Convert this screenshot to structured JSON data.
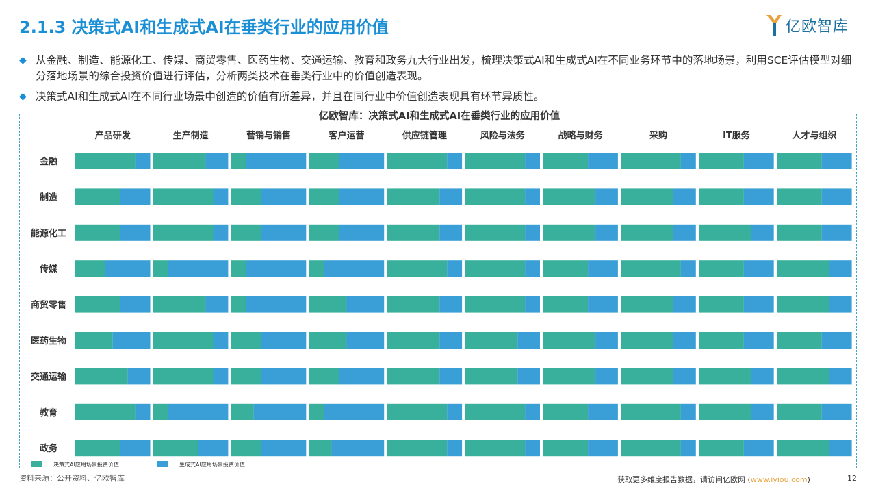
{
  "header": {
    "title": "2.1.3 决策式AI和生成式AI在垂类行业的应用价值",
    "logo_text": "亿欧智库"
  },
  "bullets": [
    "从金融、制造、能源化工、传媒、商贸零售、医药生物、交通运输、教育和政务九大行业出发，梳理决策式AI和生成式AI在不同业务环节中的落地场景，利用SCE评估模型对细分落地场景的综合投资价值进行评估，分析两类技术在垂类行业中的价值创造表现。",
    "决策式AI和生成式AI在不同行业场景中创造的价值有所差异，并且在同行业中价值创造表现具有环节异质性。"
  ],
  "footer": {
    "source": "资料来源：公开资料、亿欧智库",
    "more": "获取更多维度报告数据，请访问亿欧网 (",
    "link": "www.iyiou.com",
    "close": ")",
    "page": "12"
  },
  "colors": {
    "decision": "#38b09c",
    "generative": "#3a9fd6",
    "accent": "#1a8fd6"
  },
  "chart_data": {
    "type": "bar",
    "title": "亿欧智库：决策式AI和生成式AI在垂类行业的应用价值",
    "stacked": true,
    "normalized": true,
    "columns": [
      "产品研发",
      "生产制造",
      "营销与销售",
      "客户运营",
      "供应链管理",
      "风险与法务",
      "战略与财务",
      "采购",
      "IT服务",
      "人才与组织"
    ],
    "rows": [
      "金融",
      "制造",
      "能源化工",
      "传媒",
      "商贸零售",
      "医药生物",
      "交通运输",
      "教育",
      "政务"
    ],
    "series": [
      {
        "name": "决策式AI应用场景投资价值"
      },
      {
        "name": "生成式AI应用场景投资价值"
      }
    ],
    "decision_share": [
      [
        0.8,
        0.7,
        0.2,
        0.4,
        0.8,
        0.8,
        0.6,
        0.8,
        0.6,
        0.6
      ],
      [
        0.6,
        0.8,
        0.4,
        0.4,
        0.7,
        0.8,
        0.7,
        0.7,
        0.6,
        0.6
      ],
      [
        0.6,
        0.8,
        0.4,
        0.4,
        0.7,
        0.8,
        0.7,
        0.7,
        0.7,
        0.6
      ],
      [
        0.4,
        0.2,
        0.2,
        0.2,
        0.8,
        0.8,
        0.6,
        0.8,
        0.6,
        0.7
      ],
      [
        0.6,
        0.7,
        0.2,
        0.5,
        0.7,
        0.8,
        0.6,
        0.7,
        0.6,
        0.7
      ],
      [
        0.5,
        0.8,
        0.4,
        0.5,
        0.7,
        0.7,
        0.7,
        0.7,
        0.6,
        0.6
      ],
      [
        0.7,
        0.8,
        0.4,
        0.4,
        0.7,
        0.7,
        0.7,
        0.7,
        0.7,
        0.7
      ],
      [
        0.8,
        0.2,
        0.3,
        0.2,
        0.8,
        0.8,
        0.6,
        0.8,
        0.7,
        0.6
      ],
      [
        0.6,
        0.6,
        0.4,
        0.3,
        0.8,
        0.8,
        0.6,
        0.8,
        0.6,
        0.7
      ]
    ],
    "xlim": [
      0,
      1
    ],
    "legend_position": "bottom-left",
    "grid": false
  }
}
